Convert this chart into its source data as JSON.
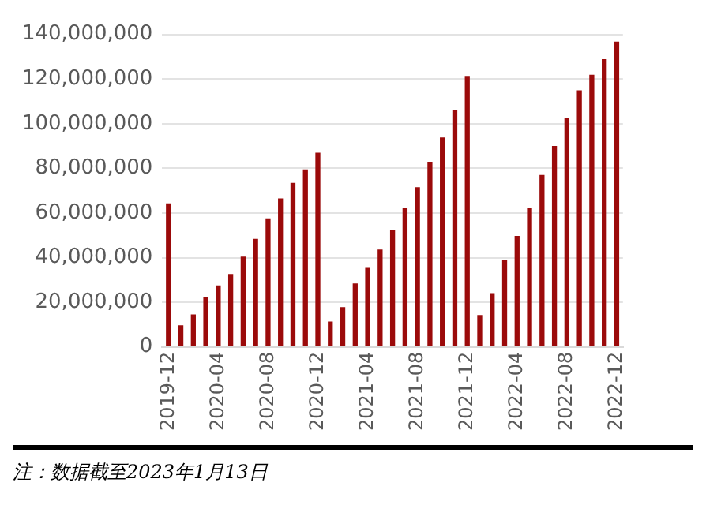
{
  "chart_data": {
    "type": "bar",
    "categories": [
      "2019-12",
      null,
      null,
      null,
      "2020-04",
      null,
      null,
      null,
      "2020-08",
      null,
      null,
      null,
      "2020-12",
      null,
      null,
      null,
      "2021-04",
      null,
      null,
      null,
      "2021-08",
      null,
      null,
      null,
      "2021-12",
      null,
      null,
      null,
      "2022-04",
      null,
      null,
      null,
      "2022-08",
      null,
      null,
      null,
      "2022-12"
    ],
    "values": [
      64300000,
      9700000,
      14600000,
      22200000,
      27600000,
      32700000,
      40500000,
      48400000,
      57600000,
      66500000,
      73500000,
      79500000,
      87000000,
      11400000,
      17800000,
      28400000,
      35400000,
      43600000,
      52200000,
      62500000,
      71600000,
      83000000,
      93800000,
      106200000,
      121400000,
      14300000,
      24100000,
      38900000,
      49700000,
      62400000,
      77000000,
      90000000,
      102400000,
      114900000,
      121900000,
      128900000,
      136800000
    ],
    "color": "#9b0a0a",
    "ylim": [
      0,
      140000000
    ],
    "yticks": [
      0,
      {
        "value": 20000000,
        "label": "20,000,000"
      },
      {
        "value": 40000000,
        "label": "40,000,000"
      },
      {
        "value": 60000000,
        "label": "60,000,000"
      },
      {
        "value": 80000000,
        "label": "80,000,000"
      },
      {
        "value": 100000000,
        "label": "100,000,000"
      },
      {
        "value": 120000000,
        "label": "120,000,000"
      },
      {
        "value": 140000000,
        "label": "140,000,000"
      }
    ],
    "grid": "y",
    "annotations": [
      "注：数据截至2023年1月13日"
    ]
  }
}
